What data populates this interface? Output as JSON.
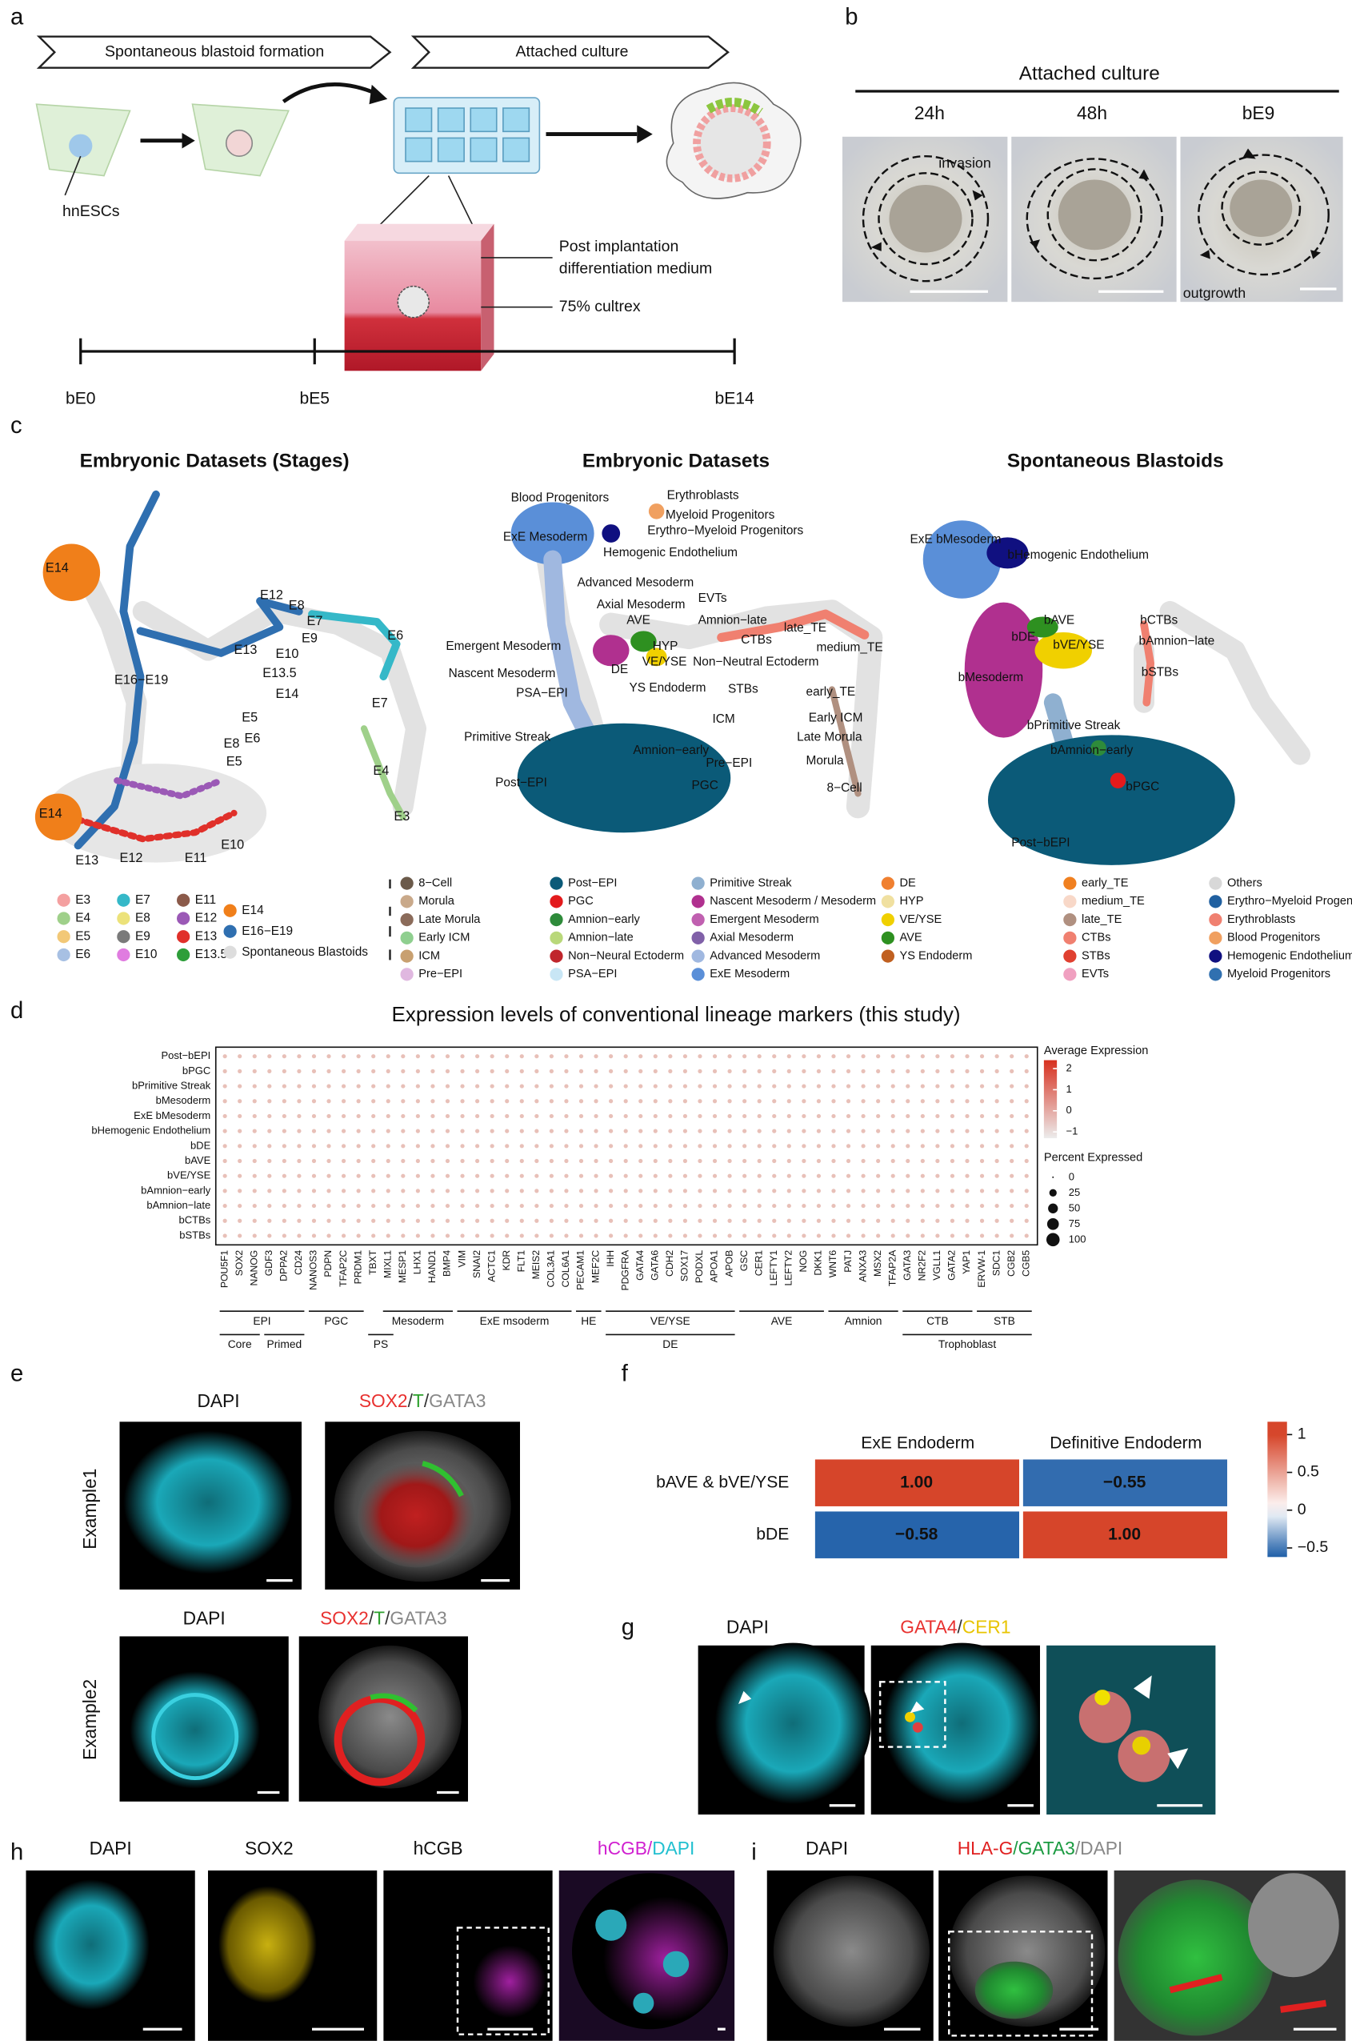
{
  "panel_labels": [
    "a",
    "b",
    "c",
    "d",
    "e",
    "f",
    "g",
    "h",
    "i"
  ],
  "a": {
    "steps": [
      "Spontaneous blastoid formation",
      "Attached culture"
    ],
    "cell_label": "hnESCs",
    "medium": [
      "Post implantation",
      "differentiation medium"
    ],
    "matrix": "75% cultrex",
    "timeline": [
      "bE0",
      "bE5",
      "bE14"
    ]
  },
  "b": {
    "title": "Attached culture",
    "timepoints": [
      "24h",
      "48h",
      "bE9"
    ],
    "annotations": [
      "invasion",
      "outgrowth"
    ]
  },
  "c": {
    "titles": [
      "Embryonic Datasets (Stages)",
      "Embryonic Datasets",
      "Spontaneous Blastoids"
    ],
    "umap_labels": [
      [
        "E14",
        "E12",
        "E8",
        "E7",
        "E6",
        "E13",
        "E9",
        "E10",
        "E13.5",
        "E16−E19",
        "E14",
        "E5",
        "E6",
        "E7",
        "E8",
        "E5",
        "E4",
        "E3",
        "E14",
        "E13",
        "E12",
        "E11",
        "E10"
      ],
      [
        "Blood Progenitors",
        "Erythroblasts",
        "Myeloid Progenitors",
        "Erythro−Myeloid Progenitors",
        "ExE Mesoderm",
        "Hemogenic Endothelium",
        "Advanced Mesoderm",
        "Axial Mesoderm",
        "AVE",
        "EVTs",
        "Amnion−late",
        "Emergent Mesoderm",
        "HYP",
        "CTBs",
        "late_TE",
        "medium_TE",
        "Non−Neutral Ectoderm",
        "DE",
        "VE/YSE",
        "Nascent Mesoderm",
        "YS Endoderm",
        "STBs",
        "early_TE",
        "PSA−EPI",
        "ICM",
        "Early ICM",
        "Primitive Streak",
        "Late Morula",
        "Amnion−early",
        "Pre−EPI",
        "Morula",
        "Post−EPI",
        "PGC",
        "8−Cell"
      ],
      [
        "ExE bMesoderm",
        "bHemogenic Endothelium",
        "bAVE",
        "bCTBs",
        "bDE",
        "bVE/YSE",
        "bAmnion−late",
        "bSTBs",
        "bMesoderm",
        "bPrimitive Streak",
        "bAmnion−early",
        "bPGC",
        "Post−bEPI"
      ]
    ],
    "stage_legend": [
      {
        "label": "E3",
        "color": "#f4a0a0"
      },
      {
        "label": "E4",
        "color": "#9fd08a"
      },
      {
        "label": "E5",
        "color": "#f2c877"
      },
      {
        "label": "E6",
        "color": "#a7c0e3"
      },
      {
        "label": "E7",
        "color": "#35b8c8"
      },
      {
        "label": "E8",
        "color": "#ece27a"
      },
      {
        "label": "E9",
        "color": "#7a7a7a"
      },
      {
        "label": "E10",
        "color": "#e07ce0"
      },
      {
        "label": "E11",
        "color": "#8b5a4a"
      },
      {
        "label": "E12",
        "color": "#9b59b6"
      },
      {
        "label": "E13",
        "color": "#e0302a"
      },
      {
        "label": "E13.5",
        "color": "#2e9e3a"
      },
      {
        "label": "E14",
        "color": "#f07f1a"
      },
      {
        "label": "E16−E19",
        "color": "#2f6fb0"
      },
      {
        "label": "Spontaneous Blastoids",
        "color": "#dddddd"
      }
    ],
    "celltype_legend": [
      {
        "label": "8−Cell",
        "color": "#6b5a4a"
      },
      {
        "label": "Morula",
        "color": "#c9a98a"
      },
      {
        "label": "Late Morula",
        "color": "#8b6b5a"
      },
      {
        "label": "Early ICM",
        "color": "#8fcf8f"
      },
      {
        "label": "ICM",
        "color": "#c8a070"
      },
      {
        "label": "Pre−EPI",
        "color": "#e0b8e0"
      },
      {
        "label": "Post−EPI",
        "color": "#0b5a78"
      },
      {
        "label": "PGC",
        "color": "#e31a1c"
      },
      {
        "label": "Amnion−early",
        "color": "#2e8b3a"
      },
      {
        "label": "Amnion−late",
        "color": "#b9d87a"
      },
      {
        "label": "Non−Neural Ectoderm",
        "color": "#c0262c"
      },
      {
        "label": "PSA−EPI",
        "color": "#c8e6f5"
      },
      {
        "label": "Primitive Streak",
        "color": "#8fb0d0"
      },
      {
        "label": "Nascent Mesoderm / Mesoderm",
        "color": "#b0308f"
      },
      {
        "label": "Emergent Mesoderm",
        "color": "#c060b0"
      },
      {
        "label": "Axial Mesoderm",
        "color": "#8060a8"
      },
      {
        "label": "Advanced Mesoderm",
        "color": "#a0b8e0"
      },
      {
        "label": "ExE Mesoderm",
        "color": "#5a8fd8"
      },
      {
        "label": "DE",
        "color": "#f08030"
      },
      {
        "label": "HYP",
        "color": "#f0e0a0"
      },
      {
        "label": "VE/YSE",
        "color": "#f0d000"
      },
      {
        "label": "AVE",
        "color": "#2e9020"
      },
      {
        "label": "YS Endoderm",
        "color": "#c06020"
      },
      {
        "label": "early_TE",
        "color": "#f08020"
      },
      {
        "label": "medium_TE",
        "color": "#f8d8c8"
      },
      {
        "label": "late_TE",
        "color": "#b09080"
      },
      {
        "label": "CTBs",
        "color": "#f08070"
      },
      {
        "label": "STBs",
        "color": "#e04030"
      },
      {
        "label": "EVTs",
        "color": "#f0a0c0"
      },
      {
        "label": "Others",
        "color": "#d8d8d8"
      },
      {
        "label": "Erythro−Myeloid Progenitors",
        "color": "#2060a0"
      },
      {
        "label": "Erythroblasts",
        "color": "#f08070"
      },
      {
        "label": "Blood Progenitors",
        "color": "#f0a060"
      },
      {
        "label": "Hemogenic Endothelium",
        "color": "#101080"
      },
      {
        "label": "Myeloid Progenitors",
        "color": "#3070b0"
      }
    ]
  },
  "d": {
    "title": "Expression levels of conventional lineage markers (this study)",
    "rows": [
      "Post−bEPI",
      "bPGC",
      "bPrimitive Streak",
      "bMesoderm",
      "ExE bMesoderm",
      "bHemogenic Endothelium",
      "bDE",
      "bAVE",
      "bVE/YSE",
      "bAmnion−early",
      "bAmnion−late",
      "bCTBs",
      "bSTBs"
    ],
    "genes": [
      "POU5F1",
      "SOX2",
      "NANOG",
      "GDF3",
      "DPPA2",
      "CD24",
      "NANOS3",
      "PDPN",
      "TFAP2C",
      "PRDM1",
      "TBXT",
      "MIXL1",
      "MESP1",
      "LHX1",
      "HAND1",
      "BMP4",
      "VIM",
      "SNAI2",
      "ACTC1",
      "KDR",
      "FLT1",
      "MEIS2",
      "COL3A1",
      "COL6A1",
      "PECAM1",
      "MEF2C",
      "IHH",
      "PDGFRA",
      "GATA4",
      "GATA6",
      "CDH2",
      "SOX17",
      "PODXL",
      "APOA1",
      "APOB",
      "GSC",
      "CER1",
      "LEFTY1",
      "LEFTY2",
      "NOG",
      "DKK1",
      "WNT6",
      "PATJ",
      "ANXA3",
      "MSX2",
      "TFAP2A",
      "GATA3",
      "NR2F2",
      "VGLL1",
      "GATA2",
      "YAP1",
      "ERVW-1",
      "SDC1",
      "CGB2",
      "CGB5"
    ],
    "groups": [
      "EPI",
      "PGC",
      "Mesoderm",
      "ExE msoderm",
      "HE",
      "VE/YSE",
      "AVE",
      "Amnion",
      "CTB",
      "STB"
    ],
    "subgroups": [
      "Core",
      "Primed"
    ],
    "supergroups": [
      "PS",
      "DE",
      "Trophoblast"
    ],
    "color_legend": {
      "title": "Average Expression",
      "clim": [
        -1.3,
        2.4
      ],
      "ticks": [
        2,
        1,
        0,
        {
          "value": -1,
          "label": "−1"
        }
      ]
    },
    "size_legend": {
      "title": "Percent Expressed",
      "ticks": [
        0,
        25,
        50,
        75,
        100
      ]
    }
  },
  "e": {
    "examples": [
      {
        "label": "Example1",
        "dapi": "DAPI",
        "merge": [
          "SOX2",
          "/",
          "T",
          "/",
          "GATA3"
        ]
      },
      {
        "label": "Example2",
        "dapi": "DAPI",
        "merge": [
          "SOX2",
          "/",
          "T",
          "/",
          "GATA3"
        ]
      }
    ]
  },
  "f": {
    "type": "heatmap",
    "columns": [
      "ExE Endoderm",
      "Definitive Endoderm"
    ],
    "rows": [
      "bAVE & bVE/YSE",
      "bDE"
    ],
    "values": [
      [
        1,
        -0.55
      ],
      [
        -0.58,
        1
      ]
    ],
    "value_labels": [
      [
        "1.00",
        "−0.55"
      ],
      [
        "−0.58",
        "1.00"
      ]
    ],
    "clim": [
      -0.62,
      1.17
    ],
    "ticks": [
      1,
      0.5,
      0,
      {
        "value": -0.5,
        "label": "−0.5"
      }
    ]
  },
  "g": {
    "dapi": "DAPI",
    "merge": [
      "GATA4",
      "/",
      "CER1"
    ]
  },
  "h": {
    "labels": [
      "DAPI",
      "SOX2",
      "hCGB"
    ],
    "merge": [
      "hCGB",
      "/",
      "DAPI"
    ]
  },
  "i": {
    "dapi": "DAPI",
    "merge": [
      "HLA-G",
      "/",
      "GATA3",
      "/",
      "DAPI"
    ]
  }
}
